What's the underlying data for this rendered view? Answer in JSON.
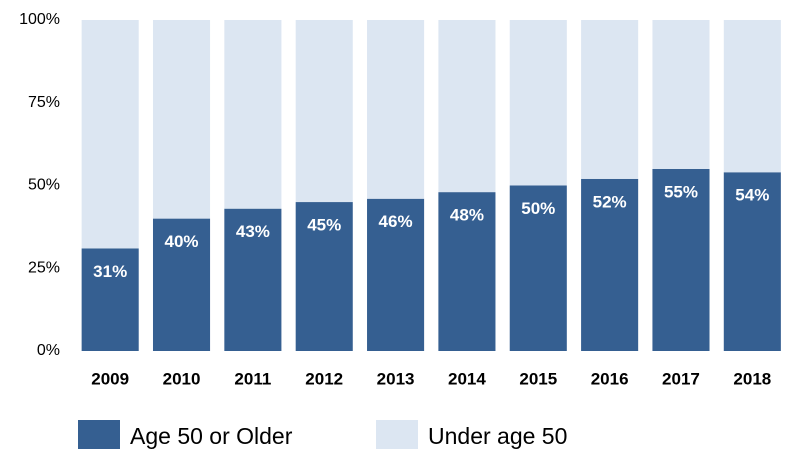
{
  "chart_data": {
    "type": "stacked_bar",
    "categories": [
      "2009",
      "2010",
      "2011",
      "2012",
      "2013",
      "2014",
      "2015",
      "2016",
      "2017",
      "2018"
    ],
    "series": [
      {
        "name": "Age 50 or Older",
        "color": "#355f91",
        "values": [
          31,
          40,
          43,
          45,
          46,
          48,
          50,
          52,
          55,
          54
        ],
        "value_labels": [
          "31%",
          "40%",
          "43%",
          "45%",
          "46%",
          "48%",
          "50%",
          "52%",
          "55%",
          "54%"
        ]
      },
      {
        "name": "Under age 50",
        "color": "#dce6f2",
        "values": [
          69,
          60,
          57,
          55,
          54,
          52,
          50,
          48,
          45,
          46
        ]
      }
    ],
    "ylim": [
      0,
      100
    ],
    "yticks": [
      {
        "value": 0,
        "label": "0%"
      },
      {
        "value": 25,
        "label": "25%"
      },
      {
        "value": 50,
        "label": "50%"
      },
      {
        "value": 75,
        "label": "75%"
      },
      {
        "value": 100,
        "label": "100%"
      }
    ]
  }
}
